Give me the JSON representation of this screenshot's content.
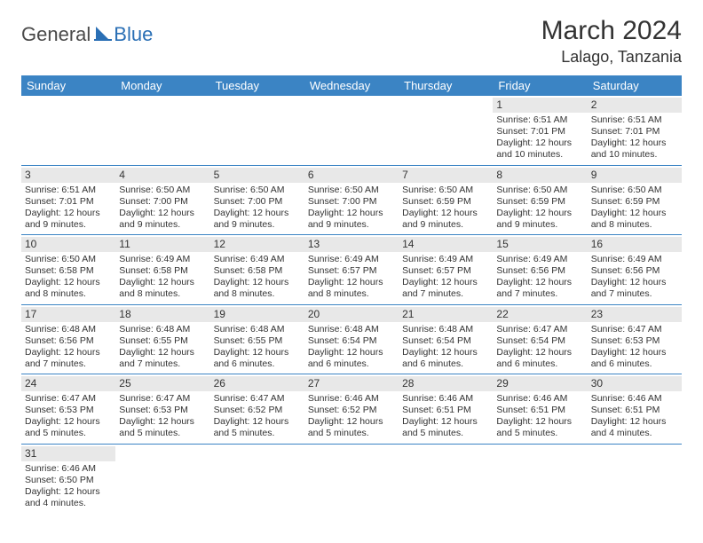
{
  "logo": {
    "general": "General",
    "blue": "Blue"
  },
  "title": "March 2024",
  "location": "Lalago, Tanzania",
  "colors": {
    "header_bg": "#3b84c4",
    "header_text": "#ffffff",
    "daynum_bg": "#e8e8e8",
    "row_divider": "#3b84c4",
    "text": "#333333",
    "logo_blue": "#2a6fb5"
  },
  "weekdays": [
    "Sunday",
    "Monday",
    "Tuesday",
    "Wednesday",
    "Thursday",
    "Friday",
    "Saturday"
  ],
  "weeks": [
    [
      {
        "empty": true
      },
      {
        "empty": true
      },
      {
        "empty": true
      },
      {
        "empty": true
      },
      {
        "empty": true
      },
      {
        "day": "1",
        "sunrise": "Sunrise: 6:51 AM",
        "sunset": "Sunset: 7:01 PM",
        "daylight1": "Daylight: 12 hours",
        "daylight2": "and 10 minutes."
      },
      {
        "day": "2",
        "sunrise": "Sunrise: 6:51 AM",
        "sunset": "Sunset: 7:01 PM",
        "daylight1": "Daylight: 12 hours",
        "daylight2": "and 10 minutes."
      }
    ],
    [
      {
        "day": "3",
        "sunrise": "Sunrise: 6:51 AM",
        "sunset": "Sunset: 7:01 PM",
        "daylight1": "Daylight: 12 hours",
        "daylight2": "and 9 minutes."
      },
      {
        "day": "4",
        "sunrise": "Sunrise: 6:50 AM",
        "sunset": "Sunset: 7:00 PM",
        "daylight1": "Daylight: 12 hours",
        "daylight2": "and 9 minutes."
      },
      {
        "day": "5",
        "sunrise": "Sunrise: 6:50 AM",
        "sunset": "Sunset: 7:00 PM",
        "daylight1": "Daylight: 12 hours",
        "daylight2": "and 9 minutes."
      },
      {
        "day": "6",
        "sunrise": "Sunrise: 6:50 AM",
        "sunset": "Sunset: 7:00 PM",
        "daylight1": "Daylight: 12 hours",
        "daylight2": "and 9 minutes."
      },
      {
        "day": "7",
        "sunrise": "Sunrise: 6:50 AM",
        "sunset": "Sunset: 6:59 PM",
        "daylight1": "Daylight: 12 hours",
        "daylight2": "and 9 minutes."
      },
      {
        "day": "8",
        "sunrise": "Sunrise: 6:50 AM",
        "sunset": "Sunset: 6:59 PM",
        "daylight1": "Daylight: 12 hours",
        "daylight2": "and 9 minutes."
      },
      {
        "day": "9",
        "sunrise": "Sunrise: 6:50 AM",
        "sunset": "Sunset: 6:59 PM",
        "daylight1": "Daylight: 12 hours",
        "daylight2": "and 8 minutes."
      }
    ],
    [
      {
        "day": "10",
        "sunrise": "Sunrise: 6:50 AM",
        "sunset": "Sunset: 6:58 PM",
        "daylight1": "Daylight: 12 hours",
        "daylight2": "and 8 minutes."
      },
      {
        "day": "11",
        "sunrise": "Sunrise: 6:49 AM",
        "sunset": "Sunset: 6:58 PM",
        "daylight1": "Daylight: 12 hours",
        "daylight2": "and 8 minutes."
      },
      {
        "day": "12",
        "sunrise": "Sunrise: 6:49 AM",
        "sunset": "Sunset: 6:58 PM",
        "daylight1": "Daylight: 12 hours",
        "daylight2": "and 8 minutes."
      },
      {
        "day": "13",
        "sunrise": "Sunrise: 6:49 AM",
        "sunset": "Sunset: 6:57 PM",
        "daylight1": "Daylight: 12 hours",
        "daylight2": "and 8 minutes."
      },
      {
        "day": "14",
        "sunrise": "Sunrise: 6:49 AM",
        "sunset": "Sunset: 6:57 PM",
        "daylight1": "Daylight: 12 hours",
        "daylight2": "and 7 minutes."
      },
      {
        "day": "15",
        "sunrise": "Sunrise: 6:49 AM",
        "sunset": "Sunset: 6:56 PM",
        "daylight1": "Daylight: 12 hours",
        "daylight2": "and 7 minutes."
      },
      {
        "day": "16",
        "sunrise": "Sunrise: 6:49 AM",
        "sunset": "Sunset: 6:56 PM",
        "daylight1": "Daylight: 12 hours",
        "daylight2": "and 7 minutes."
      }
    ],
    [
      {
        "day": "17",
        "sunrise": "Sunrise: 6:48 AM",
        "sunset": "Sunset: 6:56 PM",
        "daylight1": "Daylight: 12 hours",
        "daylight2": "and 7 minutes."
      },
      {
        "day": "18",
        "sunrise": "Sunrise: 6:48 AM",
        "sunset": "Sunset: 6:55 PM",
        "daylight1": "Daylight: 12 hours",
        "daylight2": "and 7 minutes."
      },
      {
        "day": "19",
        "sunrise": "Sunrise: 6:48 AM",
        "sunset": "Sunset: 6:55 PM",
        "daylight1": "Daylight: 12 hours",
        "daylight2": "and 6 minutes."
      },
      {
        "day": "20",
        "sunrise": "Sunrise: 6:48 AM",
        "sunset": "Sunset: 6:54 PM",
        "daylight1": "Daylight: 12 hours",
        "daylight2": "and 6 minutes."
      },
      {
        "day": "21",
        "sunrise": "Sunrise: 6:48 AM",
        "sunset": "Sunset: 6:54 PM",
        "daylight1": "Daylight: 12 hours",
        "daylight2": "and 6 minutes."
      },
      {
        "day": "22",
        "sunrise": "Sunrise: 6:47 AM",
        "sunset": "Sunset: 6:54 PM",
        "daylight1": "Daylight: 12 hours",
        "daylight2": "and 6 minutes."
      },
      {
        "day": "23",
        "sunrise": "Sunrise: 6:47 AM",
        "sunset": "Sunset: 6:53 PM",
        "daylight1": "Daylight: 12 hours",
        "daylight2": "and 6 minutes."
      }
    ],
    [
      {
        "day": "24",
        "sunrise": "Sunrise: 6:47 AM",
        "sunset": "Sunset: 6:53 PM",
        "daylight1": "Daylight: 12 hours",
        "daylight2": "and 5 minutes."
      },
      {
        "day": "25",
        "sunrise": "Sunrise: 6:47 AM",
        "sunset": "Sunset: 6:53 PM",
        "daylight1": "Daylight: 12 hours",
        "daylight2": "and 5 minutes."
      },
      {
        "day": "26",
        "sunrise": "Sunrise: 6:47 AM",
        "sunset": "Sunset: 6:52 PM",
        "daylight1": "Daylight: 12 hours",
        "daylight2": "and 5 minutes."
      },
      {
        "day": "27",
        "sunrise": "Sunrise: 6:46 AM",
        "sunset": "Sunset: 6:52 PM",
        "daylight1": "Daylight: 12 hours",
        "daylight2": "and 5 minutes."
      },
      {
        "day": "28",
        "sunrise": "Sunrise: 6:46 AM",
        "sunset": "Sunset: 6:51 PM",
        "daylight1": "Daylight: 12 hours",
        "daylight2": "and 5 minutes."
      },
      {
        "day": "29",
        "sunrise": "Sunrise: 6:46 AM",
        "sunset": "Sunset: 6:51 PM",
        "daylight1": "Daylight: 12 hours",
        "daylight2": "and 5 minutes."
      },
      {
        "day": "30",
        "sunrise": "Sunrise: 6:46 AM",
        "sunset": "Sunset: 6:51 PM",
        "daylight1": "Daylight: 12 hours",
        "daylight2": "and 4 minutes."
      }
    ],
    [
      {
        "day": "31",
        "sunrise": "Sunrise: 6:46 AM",
        "sunset": "Sunset: 6:50 PM",
        "daylight1": "Daylight: 12 hours",
        "daylight2": "and 4 minutes."
      },
      {
        "empty": true
      },
      {
        "empty": true
      },
      {
        "empty": true
      },
      {
        "empty": true
      },
      {
        "empty": true
      },
      {
        "empty": true
      }
    ]
  ]
}
